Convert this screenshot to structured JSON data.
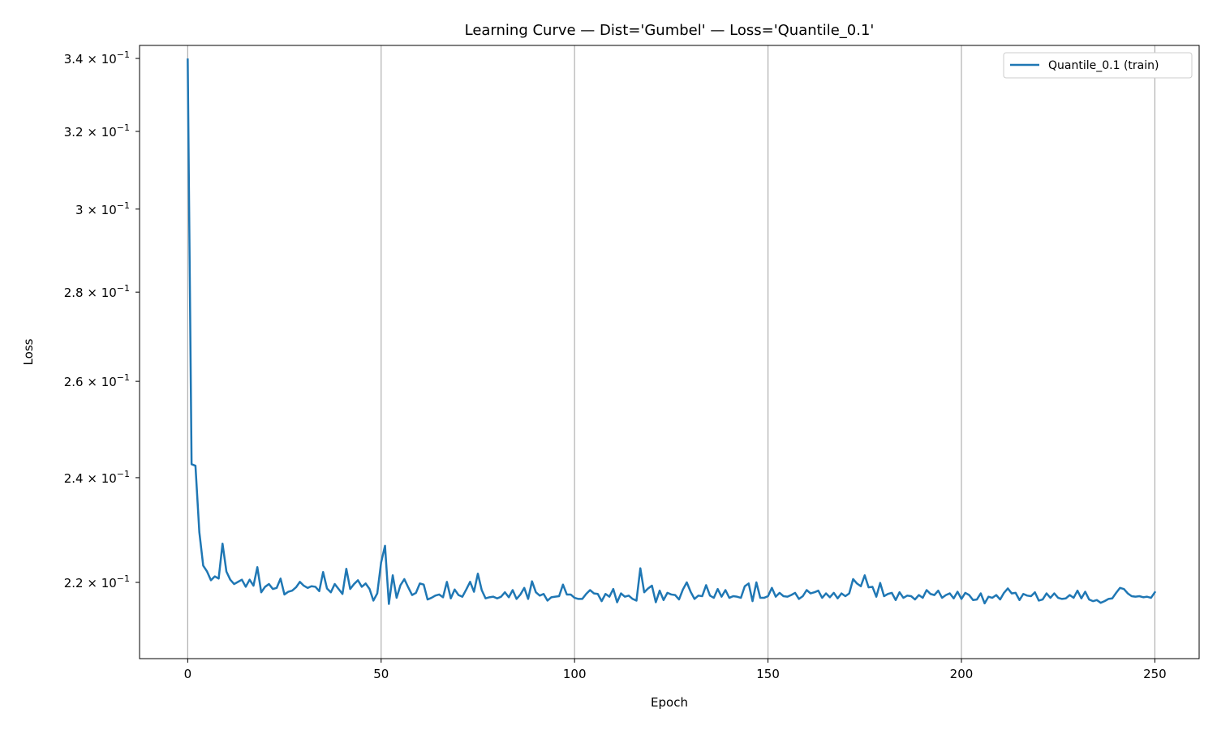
{
  "chart_data": {
    "type": "line",
    "title": "Learning Curve — Dist='Gumbel' — Loss='Quantile_0.1'",
    "xlabel": "Epoch",
    "ylabel": "Loss",
    "xlim": [
      -12.45,
      261.45
    ],
    "ylim": [
      0.2065,
      0.3437
    ],
    "yscale": "log",
    "grid": "x-axis vertical lines",
    "legend_position": "top-right",
    "x_ticks": [
      {
        "value": 0,
        "label": "0"
      },
      {
        "value": 50,
        "label": "50"
      },
      {
        "value": 100,
        "label": "100"
      },
      {
        "value": 150,
        "label": "150"
      },
      {
        "value": 200,
        "label": "200"
      },
      {
        "value": 250,
        "label": "250"
      }
    ],
    "y_ticks": [
      {
        "value": 0.22,
        "mantissa": "2.2",
        "exponent": "−1"
      },
      {
        "value": 0.24,
        "mantissa": "2.4",
        "exponent": "−1"
      },
      {
        "value": 0.26,
        "mantissa": "2.6",
        "exponent": "−1"
      },
      {
        "value": 0.28,
        "mantissa": "2.8",
        "exponent": "−1"
      },
      {
        "value": 0.3,
        "mantissa": "3",
        "exponent": "−1"
      },
      {
        "value": 0.32,
        "mantissa": "3.2",
        "exponent": "−1"
      },
      {
        "value": 0.34,
        "mantissa": "3.4",
        "exponent": "−1"
      }
    ],
    "series": [
      {
        "name": "Quantile_0.1 (train)",
        "color": "#1f77b4",
        "x_start": 0,
        "values": [
          0.3397,
          0.2427,
          0.2424,
          0.2294,
          0.2231,
          0.222,
          0.2204,
          0.2211,
          0.2207,
          0.2272,
          0.222,
          0.2205,
          0.2197,
          0.2201,
          0.2205,
          0.2192,
          0.2205,
          0.2194,
          0.2228,
          0.2182,
          0.2192,
          0.2197,
          0.2188,
          0.219,
          0.2207,
          0.2178,
          0.2183,
          0.2185,
          0.2191,
          0.2201,
          0.2194,
          0.219,
          0.2193,
          0.2192,
          0.2184,
          0.2219,
          0.2189,
          0.2182,
          0.2197,
          0.2188,
          0.2179,
          0.2225,
          0.2188,
          0.2197,
          0.2204,
          0.2192,
          0.2198,
          0.2188,
          0.2167,
          0.218,
          0.2237,
          0.2268,
          0.2161,
          0.2213,
          0.2172,
          0.2195,
          0.2206,
          0.2191,
          0.2177,
          0.2181,
          0.2198,
          0.2196,
          0.2169,
          0.2172,
          0.2176,
          0.2178,
          0.2173,
          0.2201,
          0.2171,
          0.2187,
          0.2177,
          0.2174,
          0.2187,
          0.2201,
          0.2183,
          0.2216,
          0.2186,
          0.2171,
          0.2173,
          0.2174,
          0.2171,
          0.2174,
          0.2182,
          0.2173,
          0.2186,
          0.217,
          0.2178,
          0.219,
          0.217,
          0.2202,
          0.2182,
          0.2176,
          0.2179,
          0.2167,
          0.2173,
          0.2174,
          0.2175,
          0.2196,
          0.2178,
          0.2178,
          0.2172,
          0.217,
          0.217,
          0.2179,
          0.2186,
          0.218,
          0.2179,
          0.2166,
          0.2179,
          0.2174,
          0.2188,
          0.2164,
          0.218,
          0.2174,
          0.2176,
          0.217,
          0.2167,
          0.2226,
          0.2182,
          0.2189,
          0.2194,
          0.2164,
          0.2185,
          0.2168,
          0.2181,
          0.2178,
          0.2177,
          0.2169,
          0.2187,
          0.22,
          0.2183,
          0.217,
          0.2176,
          0.2175,
          0.2195,
          0.2176,
          0.2172,
          0.2188,
          0.2174,
          0.2186,
          0.2172,
          0.2175,
          0.2174,
          0.2172,
          0.2193,
          0.2198,
          0.2166,
          0.22,
          0.2172,
          0.2172,
          0.2175,
          0.219,
          0.2174,
          0.2181,
          0.2175,
          0.2174,
          0.2177,
          0.2181,
          0.217,
          0.2175,
          0.2186,
          0.218,
          0.2182,
          0.2185,
          0.2172,
          0.218,
          0.2173,
          0.2181,
          0.2171,
          0.218,
          0.2175,
          0.218,
          0.2206,
          0.2198,
          0.2193,
          0.2213,
          0.2191,
          0.2192,
          0.2174,
          0.2199,
          0.2175,
          0.2179,
          0.2181,
          0.2168,
          0.2182,
          0.2172,
          0.2176,
          0.2175,
          0.2169,
          0.2177,
          0.2172,
          0.2186,
          0.2179,
          0.2177,
          0.2185,
          0.2172,
          0.2177,
          0.218,
          0.2171,
          0.2183,
          0.217,
          0.2181,
          0.2177,
          0.2168,
          0.2169,
          0.218,
          0.2162,
          0.2174,
          0.2172,
          0.2177,
          0.2169,
          0.2181,
          0.2189,
          0.218,
          0.2181,
          0.2168,
          0.2179,
          0.2176,
          0.2175,
          0.2182,
          0.2167,
          0.2169,
          0.218,
          0.2172,
          0.218,
          0.2172,
          0.217,
          0.2171,
          0.2177,
          0.2172,
          0.2185,
          0.2171,
          0.2183,
          0.2169,
          0.2166,
          0.2168,
          0.2163,
          0.2166,
          0.217,
          0.2171,
          0.2181,
          0.219,
          0.2188,
          0.218,
          0.2175,
          0.2174,
          0.2175,
          0.2173,
          0.2174,
          0.2172,
          0.2182
        ]
      }
    ]
  }
}
